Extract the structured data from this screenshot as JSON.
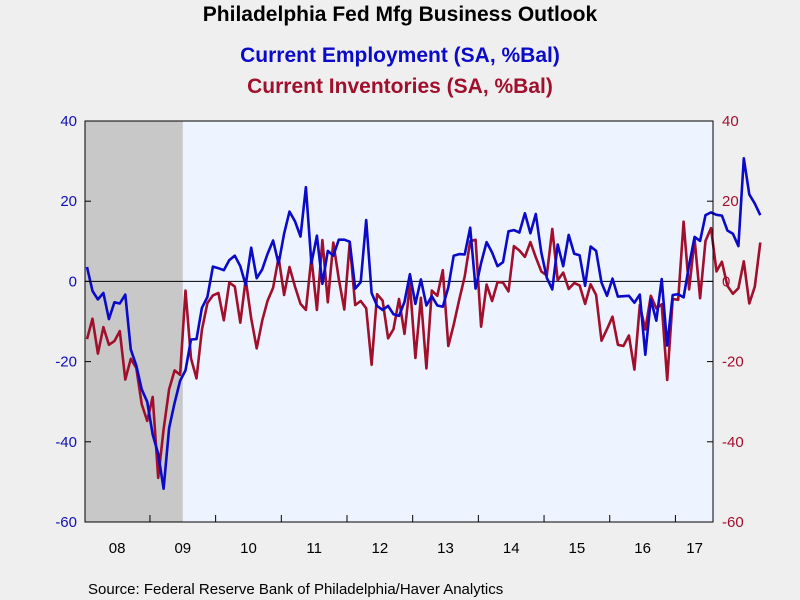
{
  "chart_data": {
    "type": "line",
    "title": "Philadelphia Fed Mfg Business Outlook",
    "subtitle_lines": [
      "Current Employment (SA, %Bal)",
      "Current Inventories (SA, %Bal)"
    ],
    "source": "Source:  Federal Reserve Bank of Philadelphia/Haver Analytics",
    "colors": {
      "employment": "#0a0ac8",
      "inventories": "#a0102c",
      "recession": "#c8c8c8",
      "plot_bg": "#eef4ff"
    },
    "ylim": [
      -60,
      40
    ],
    "y_left_ticks": [
      "40",
      "20",
      "0",
      "-20",
      "-40",
      "-60"
    ],
    "y_right_ticks": [
      "40",
      "20",
      "0",
      "-20",
      "-40",
      "-60"
    ],
    "x_tick_labels": [
      "08",
      "09",
      "10",
      "11",
      "12",
      "13",
      "14",
      "15",
      "16",
      "17"
    ],
    "x_range": [
      "2008-01",
      "2017-07"
    ],
    "recession_shading": [
      "2008-01",
      "2009-06"
    ],
    "grid": false,
    "series": [
      {
        "name": "Current Employment (SA, %Bal)",
        "axis": "left",
        "start": "2008-01",
        "values": [
          3.6,
          -2.4,
          -4.5,
          -2.9,
          -9.4,
          -5.2,
          -5.5,
          -3.3,
          -17.0,
          -21.0,
          -26.9,
          -30.0,
          -38.2,
          -43.0,
          -51.7,
          -36.6,
          -30.3,
          -24.8,
          -22.2,
          -14.5,
          -14.4,
          -6.6,
          -3.9,
          3.7,
          3.3,
          2.8,
          5.3,
          6.4,
          3.8,
          -0.9,
          8.4,
          0.8,
          3.0,
          6.9,
          10.2,
          4.4,
          11.9,
          17.4,
          15.0,
          11.2,
          23.5,
          4.5,
          11.4,
          -0.6,
          7.6,
          6.4,
          10.4,
          10.4,
          9.9,
          -1.8,
          -0.2,
          15.3,
          -2.9,
          -6.1,
          -7.1,
          -6.1,
          -8.2,
          -8.6,
          -5.1,
          1.8,
          -5.6,
          0.5,
          -6.0,
          -3.7,
          -6.0,
          -6.3,
          -1.5,
          6.4,
          6.8,
          6.7,
          13.4,
          -1.8,
          4.6,
          9.8,
          7.2,
          3.8,
          4.8,
          12.5,
          12.8,
          12.2,
          17.0,
          12.0,
          16.8,
          7.2,
          0.9,
          -2.0,
          9.2,
          3.8,
          11.6,
          6.9,
          6.5,
          -1.1,
          8.7,
          7.6,
          -0.3,
          -3.6,
          0.7,
          -3.8,
          -3.7,
          -3.6,
          -5.3,
          -3.3,
          -18.3,
          -4.5,
          -9.8,
          0.6,
          -16.0,
          -3.4,
          -3.2,
          -4.0,
          4.1,
          11.1,
          10.1,
          16.5,
          17.2,
          16.6,
          16.4,
          12.7,
          11.9,
          8.8,
          30.7,
          21.7,
          19.4,
          16.5
        ]
      },
      {
        "name": "Current Inventories (SA, %Bal)",
        "axis": "right",
        "start": "2008-01",
        "values": [
          -14.4,
          -9.3,
          -18.0,
          -11.4,
          -15.8,
          -14.9,
          -12.4,
          -24.5,
          -19.3,
          -21.6,
          -30.6,
          -34.8,
          -28.8,
          -49.0,
          -36.9,
          -26.9,
          -22.2,
          -23.3,
          -2.3,
          -19.2,
          -24.2,
          -12.1,
          -5.4,
          -3.5,
          -2.9,
          -9.7,
          -0.3,
          -1.3,
          -10.3,
          0.5,
          -9.2,
          -16.7,
          -9.8,
          -4.8,
          -1.6,
          6.0,
          -3.4,
          3.6,
          -1.3,
          -5.6,
          -7.1,
          5.9,
          -7.1,
          10.3,
          -5.2,
          9.7,
          0.6,
          -7.0,
          9.6,
          -5.9,
          -4.9,
          -6.7,
          -20.8,
          -3.2,
          -4.8,
          -14.2,
          -11.9,
          -4.4,
          -13.1,
          -0.6,
          -19.1,
          -4.1,
          -21.7,
          -2.3,
          -3.6,
          2.8,
          -16.1,
          -10.8,
          -4.6,
          1.2,
          10.0,
          10.4,
          -11.3,
          -0.8,
          -4.9,
          -0.2,
          -0.3,
          -2.5,
          8.8,
          7.7,
          6.1,
          9.8,
          6.0,
          2.5,
          1.5,
          13.1,
          0.3,
          2.2,
          -1.9,
          -0.4,
          -1.0,
          -5.6,
          -0.7,
          -3.4,
          -14.8,
          -11.9,
          -8.8,
          -15.8,
          -16.1,
          -13.5,
          -22.0,
          -5.9,
          -12.0,
          -3.6,
          -6.7,
          -5.7,
          -24.6,
          -4.4,
          -4.6,
          14.9,
          -2.0,
          10.5,
          -4.2,
          10.1,
          13.3,
          2.5,
          4.9,
          -1.1,
          -3.1,
          -1.7,
          5.0,
          -5.5,
          -1.3,
          9.7
        ]
      }
    ]
  }
}
